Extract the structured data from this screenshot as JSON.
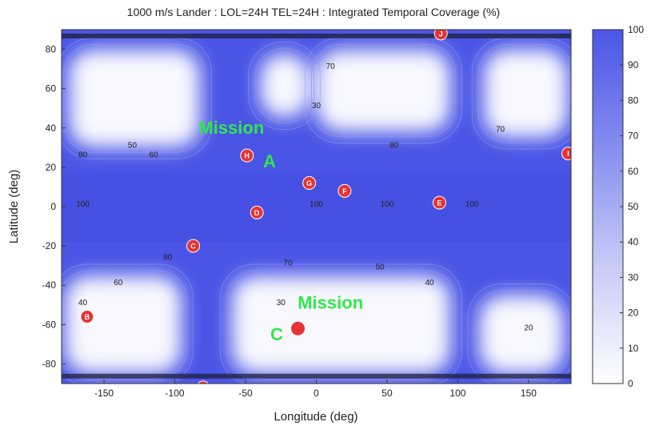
{
  "chart_data": {
    "type": "heatmap",
    "title": "1000 m/s Lander : LOL=24H TEL=24H : Integrated Temporal Coverage (%)",
    "xlabel": "Longitude (deg)",
    "ylabel": "Latitude (deg)",
    "xlim": [
      -180,
      180
    ],
    "ylim": [
      -90,
      90
    ],
    "x_ticks": [
      -150,
      -100,
      -50,
      0,
      50,
      100,
      150
    ],
    "y_ticks": [
      80,
      60,
      40,
      20,
      0,
      -20,
      -40,
      -60,
      -80
    ],
    "colorbar": {
      "range": [
        0,
        100
      ],
      "ticks": [
        100,
        90,
        80,
        70,
        60,
        50,
        40,
        30,
        20,
        10,
        0
      ],
      "color_high": "#4a55e6",
      "color_low": "#ffffff"
    },
    "low_coverage_regions": [
      {
        "lon": [
          -175,
          -82
        ],
        "lat": [
          30,
          80
        ]
      },
      {
        "lon": [
          -40,
          -5
        ],
        "lat": [
          45,
          78
        ]
      },
      {
        "lon": [
          0,
          95
        ],
        "lat": [
          38,
          80
        ]
      },
      {
        "lon": [
          118,
          178
        ],
        "lat": [
          35,
          80
        ]
      },
      {
        "lon": [
          -178,
          -95
        ],
        "lat": [
          -85,
          -35
        ]
      },
      {
        "lon": [
          -60,
          95
        ],
        "lat": [
          -85,
          -35
        ]
      },
      {
        "lon": [
          115,
          175
        ],
        "lat": [
          -85,
          -45
        ]
      }
    ],
    "contour_labels": [
      {
        "lon": 0,
        "lat": 0,
        "text": "100"
      },
      {
        "lon": 50,
        "lat": 0,
        "text": "100"
      },
      {
        "lon": 110,
        "lat": 0,
        "text": "100"
      },
      {
        "lon": -165,
        "lat": 0,
        "text": "100"
      },
      {
        "lon": -130,
        "lat": 30,
        "text": "50"
      },
      {
        "lon": -115,
        "lat": 25,
        "text": "60"
      },
      {
        "lon": -165,
        "lat": 25,
        "text": "80"
      },
      {
        "lon": 55,
        "lat": 30,
        "text": "80"
      },
      {
        "lon": 130,
        "lat": 38,
        "text": "70"
      },
      {
        "lon": -105,
        "lat": -27,
        "text": "80"
      },
      {
        "lon": -140,
        "lat": -40,
        "text": "60"
      },
      {
        "lon": -20,
        "lat": -30,
        "text": "70"
      },
      {
        "lon": 45,
        "lat": -32,
        "text": "50"
      },
      {
        "lon": 80,
        "lat": -40,
        "text": "40"
      },
      {
        "lon": -165,
        "lat": -50,
        "text": "40"
      },
      {
        "lon": -25,
        "lat": -50,
        "text": "30"
      },
      {
        "lon": 150,
        "lat": -63,
        "text": "20"
      },
      {
        "lon": 0,
        "lat": 50,
        "text": "30"
      },
      {
        "lon": 10,
        "lat": 70,
        "text": "70"
      }
    ],
    "sites": [
      {
        "label": "J",
        "lon": 88,
        "lat": 88
      },
      {
        "label": "H",
        "lon": -49,
        "lat": 26
      },
      {
        "label": "I",
        "lon": 178,
        "lat": 27
      },
      {
        "label": "G",
        "lon": -5,
        "lat": 12
      },
      {
        "label": "F",
        "lon": 20,
        "lat": 8
      },
      {
        "label": "E",
        "lon": 87,
        "lat": 2
      },
      {
        "label": "D",
        "lon": -42,
        "lat": -3
      },
      {
        "label": "C",
        "lon": -87,
        "lat": -20
      },
      {
        "label": "B",
        "lon": -162,
        "lat": -56
      },
      {
        "label": "A",
        "lon": -80,
        "lat": -92
      },
      {
        "label": "",
        "lon": -13,
        "lat": -62
      }
    ],
    "annotations": [
      {
        "text": "Mission",
        "lon": -60,
        "lat": 37
      },
      {
        "text": "A",
        "lon": -33,
        "lat": 20
      },
      {
        "text": "Mission",
        "lon": 10,
        "lat": -52
      },
      {
        "text": "C",
        "lon": -28,
        "lat": -68
      }
    ],
    "annotation_color": "#2fe84a",
    "site_color": "#e63434"
  }
}
